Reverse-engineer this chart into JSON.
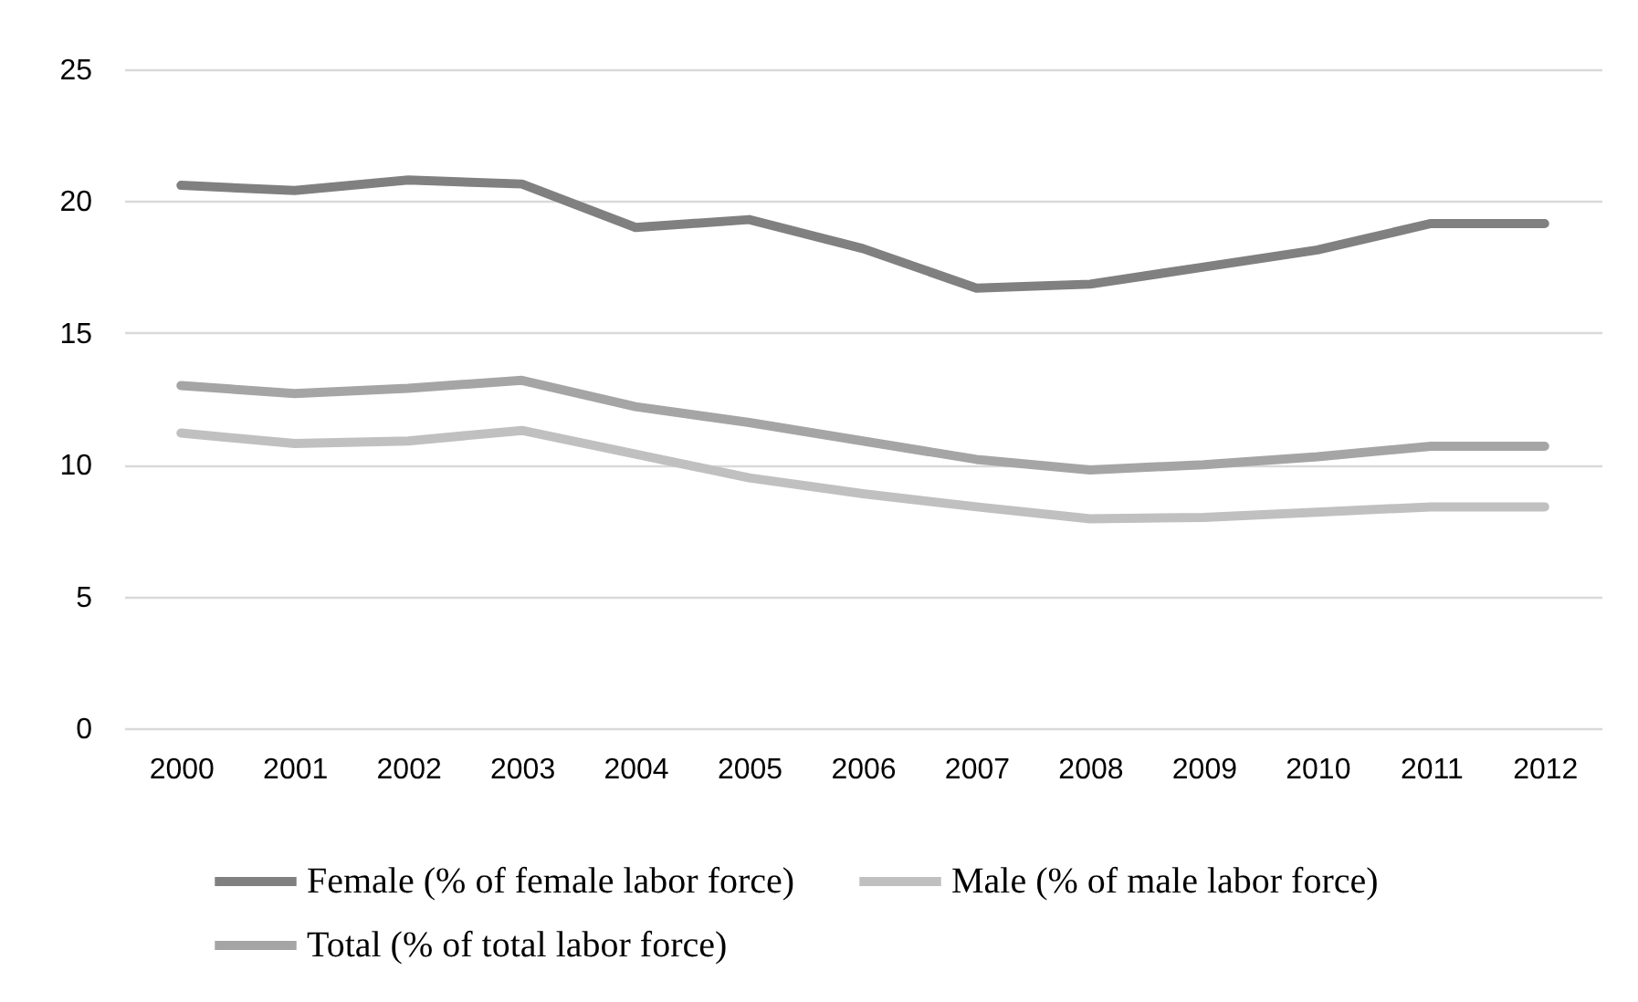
{
  "chart_data": {
    "type": "line",
    "categories": [
      "2000",
      "2001",
      "2002",
      "2003",
      "2004",
      "2005",
      "2006",
      "2007",
      "2008",
      "2009",
      "2010",
      "2011",
      "2012"
    ],
    "series": [
      {
        "name": "Female (% of female labor force)",
        "color": "#808080",
        "values": [
          20.6,
          20.4,
          20.8,
          20.65,
          19.0,
          19.3,
          18.2,
          16.7,
          16.85,
          17.5,
          18.15,
          19.15,
          19.15
        ]
      },
      {
        "name": "Male (% of male labor force)",
        "color": "#c0c0c0",
        "values": [
          11.2,
          10.8,
          10.9,
          11.3,
          10.4,
          9.5,
          8.9,
          8.4,
          7.95,
          8.0,
          8.2,
          8.4,
          8.4
        ]
      },
      {
        "name": "Total (% of total labor force)",
        "color": "#a5a5a5",
        "values": [
          13.0,
          12.7,
          12.9,
          13.2,
          12.2,
          11.6,
          10.9,
          10.2,
          9.8,
          10.0,
          10.3,
          10.7,
          10.7
        ]
      }
    ],
    "ylim": [
      0,
      25
    ],
    "yticks": [
      0,
      5,
      10,
      15,
      20,
      25
    ],
    "grid": "y",
    "legend": "bottom",
    "line_style": "solid"
  }
}
